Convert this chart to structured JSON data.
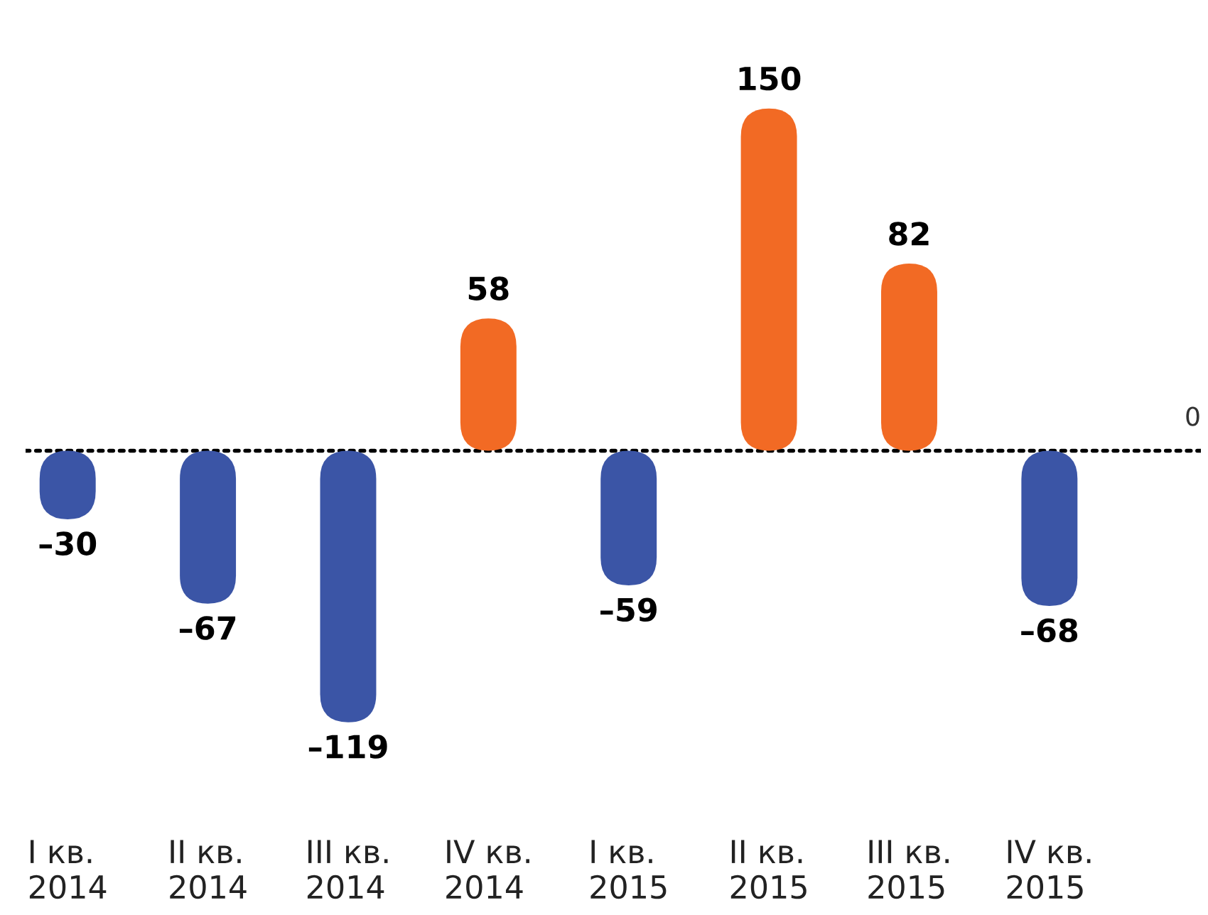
{
  "chart_data": {
    "type": "bar",
    "categories": [
      "I кв.\n2014",
      "II кв.\n2014",
      "III кв.\n2014",
      "IV кв.\n2014",
      "I кв.\n2015",
      "II кв.\n2015",
      "III кв.\n2015",
      "IV кв.\n2015"
    ],
    "values": [
      -30,
      -67,
      -119,
      58,
      -59,
      150,
      82,
      -68
    ],
    "colors": [
      "#3b55a6",
      "#3b55a6",
      "#3b55a6",
      "#f26a24",
      "#3b55a6",
      "#f26a24",
      "#f26a24",
      "#3b55a6"
    ],
    "value_labels": [
      "–30",
      "–67",
      "–119",
      "58",
      "–59",
      "150",
      "82",
      "–68"
    ],
    "tick_labels": "x",
    "ref_lines": [
      {
        "axis": "y",
        "value": 0,
        "label": "0",
        "line_style": "dotted",
        "color": "#000000"
      }
    ],
    "grid": false
  }
}
